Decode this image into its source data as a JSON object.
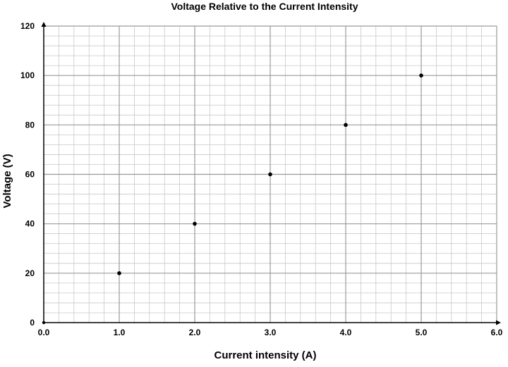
{
  "chart_data": {
    "type": "scatter",
    "title": "Voltage Relative to the Current Intensity",
    "xlabel": "Current intensity (A)",
    "ylabel": "Voltage (V)",
    "xlim": [
      0,
      6
    ],
    "ylim": [
      0,
      120
    ],
    "x_ticks": [
      "0.0",
      "1.0",
      "2.0",
      "3.0",
      "4.0",
      "5.0",
      "6.0"
    ],
    "y_ticks": [
      "0",
      "20",
      "40",
      "60",
      "80",
      "100",
      "120"
    ],
    "grid": true,
    "series": [
      {
        "points": [
          {
            "x": 1,
            "y": 20
          },
          {
            "x": 2,
            "y": 40
          },
          {
            "x": 3,
            "y": 60
          },
          {
            "x": 4,
            "y": 80
          },
          {
            "x": 5,
            "y": 100
          }
        ]
      }
    ],
    "colors": {
      "marker": "#000000",
      "grid_minor": "#c8c8c8",
      "grid_major": "#9a9a9a",
      "axis": "#000000"
    }
  }
}
